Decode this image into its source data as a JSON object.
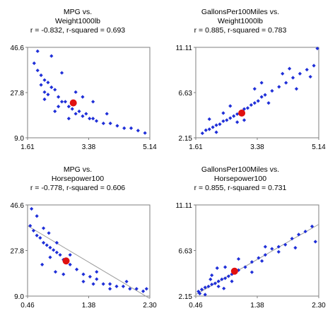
{
  "chart_data": [
    {
      "type": "scatter",
      "title_lines": [
        "MPG vs.",
        "Weight1000lb",
        "r = -0.832,  r-squared = 0.693"
      ],
      "xticks": [
        "1.61",
        "3.38",
        "5.14"
      ],
      "yticks": [
        "46.6",
        "27.8",
        "9.0"
      ],
      "xlim": [
        1.61,
        5.14
      ],
      "ylim": [
        9.0,
        46.6
      ],
      "trend": "none",
      "colors": {
        "points": "#1f2fd8",
        "mean": "#e01010",
        "trend": "#9a9a9a"
      },
      "series": [
        {
          "x": [
            1.8,
            1.9,
            2.0,
            2.0,
            2.1,
            2.1,
            2.2,
            2.2,
            2.3,
            2.4,
            2.5,
            2.5,
            2.6,
            2.7,
            2.8,
            2.9,
            3.0,
            3.1,
            3.2,
            3.3,
            3.4,
            3.5,
            3.6,
            3.8,
            4.0,
            4.2,
            4.4,
            4.6,
            4.8,
            5.0,
            1.9,
            2.3,
            2.6,
            3.0,
            3.5,
            2.1,
            2.4,
            2.8,
            3.2,
            3.9
          ],
          "y": [
            40,
            37,
            35,
            31,
            33,
            28,
            32,
            27,
            30,
            29,
            26,
            22,
            24,
            24,
            22,
            21,
            19,
            20,
            18,
            19,
            17,
            17,
            16,
            15,
            15,
            14,
            13,
            13,
            12,
            11,
            45,
            43,
            36,
            28,
            24,
            25,
            20,
            17,
            26,
            19
          ]
        }
      ],
      "mean_point": {
        "x": 2.93,
        "y": 23.5
      }
    },
    {
      "type": "scatter",
      "title_lines": [
        "GallonsPer100Miles vs.",
        "Weight1000lb",
        "r = 0.885,  r-squared = 0.783"
      ],
      "xticks": [
        "1.61",
        "3.38",
        "5.14"
      ],
      "yticks": [
        "11.11",
        "6.63",
        "2.15"
      ],
      "xlim": [
        1.61,
        5.14
      ],
      "ylim": [
        2.15,
        11.11
      ],
      "trend": "none",
      "colors": {
        "points": "#1f2fd8",
        "mean": "#e01010",
        "trend": "#9a9a9a"
      },
      "series": [
        {
          "x": [
            1.8,
            1.9,
            2.0,
            2.1,
            2.2,
            2.3,
            2.4,
            2.5,
            2.6,
            2.7,
            2.8,
            2.9,
            3.0,
            3.1,
            3.2,
            3.3,
            3.4,
            3.5,
            3.6,
            3.8,
            4.0,
            4.2,
            4.4,
            4.6,
            4.8,
            5.0,
            2.0,
            2.4,
            2.8,
            3.3,
            3.7,
            4.1,
            4.5,
            2.2,
            2.6,
            3.0,
            3.5,
            4.3,
            4.9,
            5.1
          ],
          "y": [
            2.6,
            2.9,
            3.0,
            3.2,
            3.4,
            3.5,
            3.8,
            3.9,
            4.1,
            4.3,
            4.5,
            4.7,
            5.0,
            5.1,
            5.4,
            5.6,
            5.8,
            6.2,
            6.4,
            6.8,
            7.2,
            7.6,
            8.1,
            8.5,
            8.9,
            9.3,
            4.0,
            4.6,
            3.7,
            7.0,
            5.6,
            8.5,
            7.0,
            2.7,
            5.3,
            3.9,
            7.6,
            9.0,
            8.2,
            11.0
          ]
        }
      ],
      "mean_point": {
        "x": 2.93,
        "y": 4.6
      }
    },
    {
      "type": "scatter",
      "title_lines": [
        "MPG vs.",
        "Horsepower100",
        "r = -0.778,  r-squared = 0.606"
      ],
      "xticks": [
        "0.46",
        "1.38",
        "2.30"
      ],
      "yticks": [
        "46.6",
        "27.8",
        "9.0"
      ],
      "xlim": [
        0.46,
        2.3
      ],
      "ylim": [
        9.0,
        46.6
      ],
      "trend": "linear",
      "trend_line": {
        "x": [
          0.46,
          2.3
        ],
        "y": [
          38.0,
          8.0
        ]
      },
      "colors": {
        "points": "#1f2fd8",
        "mean": "#e01010",
        "trend": "#9a9a9a"
      },
      "series": [
        {
          "x": [
            0.5,
            0.55,
            0.6,
            0.65,
            0.7,
            0.75,
            0.8,
            0.85,
            0.9,
            0.95,
            1.0,
            1.05,
            1.1,
            1.2,
            1.3,
            1.4,
            1.5,
            1.6,
            1.7,
            1.8,
            1.9,
            2.0,
            2.1,
            2.2,
            0.6,
            0.7,
            0.8,
            0.9,
            1.0,
            1.1,
            1.3,
            1.5,
            1.7,
            0.52,
            0.68,
            0.78,
            0.88,
            1.45,
            1.95,
            2.25
          ],
          "y": [
            38,
            36,
            34,
            33,
            31,
            30,
            29,
            28,
            27,
            26,
            24,
            23,
            22,
            20,
            18,
            17,
            16,
            14,
            14,
            13,
            13,
            12,
            12,
            11,
            42,
            37,
            25,
            31,
            18,
            26,
            15,
            19,
            12,
            45,
            22,
            35,
            19,
            14,
            15,
            12
          ]
        }
      ],
      "mean_point": {
        "x": 1.04,
        "y": 23.5
      }
    },
    {
      "type": "scatter",
      "title_lines": [
        "GallonsPer100Miles vs.",
        "Horsepower100",
        "r = 0.855,  r-squared = 0.731"
      ],
      "xticks": [
        "0.46",
        "1.38",
        "2.30"
      ],
      "yticks": [
        "11.11",
        "6.63",
        "2.15"
      ],
      "xlim": [
        0.46,
        2.3
      ],
      "ylim": [
        2.15,
        11.11
      ],
      "trend": "linear",
      "trend_line": {
        "x": [
          0.46,
          2.3
        ],
        "y": [
          2.3,
          9.2
        ]
      },
      "colors": {
        "points": "#1f2fd8",
        "mean": "#e01010",
        "trend": "#9a9a9a"
      },
      "series": [
        {
          "x": [
            0.5,
            0.55,
            0.6,
            0.65,
            0.7,
            0.75,
            0.8,
            0.85,
            0.9,
            0.95,
            1.0,
            1.05,
            1.1,
            1.2,
            1.3,
            1.4,
            1.5,
            1.6,
            1.7,
            1.8,
            1.9,
            2.0,
            2.1,
            2.2,
            0.6,
            0.7,
            0.8,
            0.9,
            1.0,
            1.1,
            1.3,
            1.5,
            1.7,
            0.52,
            0.68,
            0.78,
            0.88,
            1.45,
            1.95,
            2.25
          ],
          "y": [
            2.6,
            2.8,
            3.0,
            3.1,
            3.3,
            3.4,
            3.6,
            3.8,
            3.9,
            4.1,
            4.3,
            4.5,
            4.7,
            5.0,
            5.5,
            5.9,
            6.2,
            6.8,
            7.0,
            7.2,
            7.8,
            8.2,
            8.5,
            9.0,
            2.3,
            4.2,
            3.1,
            5.0,
            3.6,
            5.8,
            4.5,
            7.0,
            6.5,
            2.4,
            3.8,
            4.9,
            2.9,
            5.6,
            6.9,
            7.5
          ]
        }
      ],
      "mean_point": {
        "x": 1.04,
        "y": 4.6
      }
    }
  ]
}
